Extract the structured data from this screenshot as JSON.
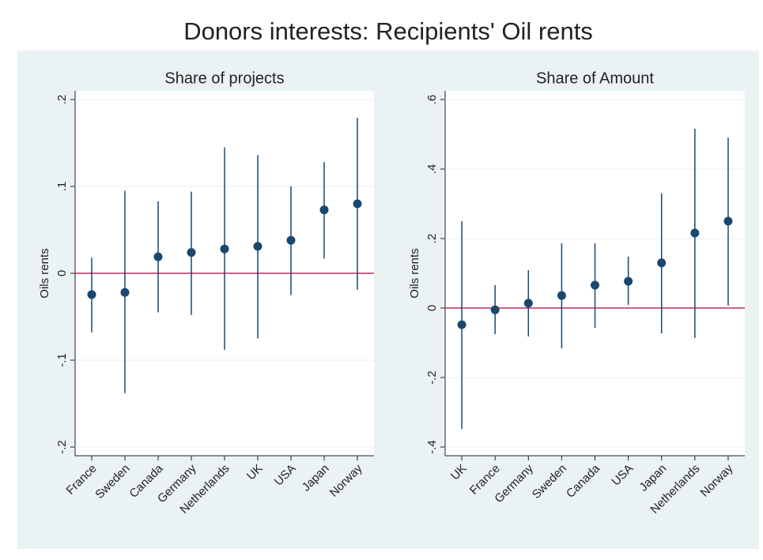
{
  "title": "Donors interests: Recipients' Oil rents",
  "chart_data": [
    {
      "type": "pointrange",
      "title": "Share of projects",
      "y_label": "Oils rents",
      "categories": [
        "France",
        "Sweden",
        "Canada",
        "Germany",
        "Netherlands",
        "UK",
        "USA",
        "Japan",
        "Norway"
      ],
      "values": [
        -0.0245,
        -0.022,
        0.019,
        0.024,
        0.028,
        0.031,
        0.038,
        0.073,
        0.08
      ],
      "lower": [
        -0.068,
        -0.138,
        -0.045,
        -0.048,
        -0.088,
        -0.075,
        -0.025,
        0.017,
        -0.019
      ],
      "upper": [
        0.018,
        0.095,
        0.083,
        0.094,
        0.145,
        0.136,
        0.1,
        0.128,
        0.179
      ],
      "color": "#1a476f",
      "reference_line": 0,
      "reference_color": "#c0305a",
      "ylim": [
        -0.21,
        0.21
      ],
      "yticks": [
        {
          "value": -0.2,
          "label": "-.2"
        },
        {
          "value": -0.1,
          "label": "-.1"
        },
        0,
        {
          "value": 0.1,
          "label": ".1"
        },
        {
          "value": 0.2,
          "label": ".2"
        }
      ],
      "grid": true
    },
    {
      "type": "pointrange",
      "title": "Share of Amount",
      "y_label": "Oils rents",
      "categories": [
        "UK",
        "France",
        "Germany",
        "Sweden",
        "Canada",
        "USA",
        "Japan",
        "Netherlands",
        "Norway"
      ],
      "values": [
        -0.048,
        -0.005,
        0.014,
        0.036,
        0.066,
        0.077,
        0.13,
        0.216,
        0.25
      ],
      "lower": [
        -0.348,
        -0.075,
        -0.082,
        -0.116,
        -0.057,
        0.009,
        -0.073,
        -0.086,
        0.007
      ],
      "upper": [
        0.25,
        0.066,
        0.109,
        0.186,
        0.186,
        0.148,
        0.33,
        0.516,
        0.49
      ],
      "color": "#1a476f",
      "reference_line": 0,
      "reference_color": "#c0305a",
      "ylim": [
        -0.425,
        0.625
      ],
      "yticks": [
        {
          "value": -0.4,
          "label": "-.4"
        },
        {
          "value": -0.2,
          "label": "-.2"
        },
        0,
        {
          "value": 0.2,
          "label": ".2"
        },
        {
          "value": 0.4,
          "label": ".4"
        },
        {
          "value": 0.6,
          "label": ".6"
        }
      ],
      "grid": true
    }
  ]
}
